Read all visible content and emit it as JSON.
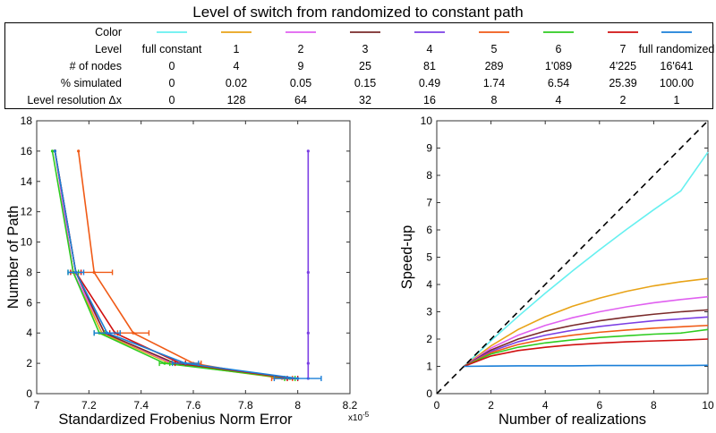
{
  "title": "Level of switch from randomized to constant path",
  "legend_table": {
    "row_labels": [
      "Color",
      "Level",
      "# of nodes",
      "% simulated",
      "Level resolution Δx"
    ],
    "columns": [
      {
        "color": "#66f0f0",
        "level": "full constant",
        "nodes": "0",
        "simulated": "0",
        "resolution": "0"
      },
      {
        "color": "#e8a317",
        "level": "1",
        "nodes": "4",
        "simulated": "0.02",
        "resolution": "128"
      },
      {
        "color": "#e060f0",
        "level": "2",
        "nodes": "9",
        "simulated": "0.05",
        "resolution": "64"
      },
      {
        "color": "#7a2a2a",
        "level": "3",
        "nodes": "25",
        "simulated": "0.15",
        "resolution": "32"
      },
      {
        "color": "#7b3fe4",
        "level": "4",
        "nodes": "81",
        "simulated": "0.49",
        "resolution": "16"
      },
      {
        "color": "#f05a16",
        "level": "5",
        "nodes": "289",
        "simulated": "1.74",
        "resolution": "8"
      },
      {
        "color": "#2ecc20",
        "level": "6",
        "nodes": "1'089",
        "simulated": "6.54",
        "resolution": "4"
      },
      {
        "color": "#d01010",
        "level": "7",
        "nodes": "4'225",
        "simulated": "25.39",
        "resolution": "2"
      },
      {
        "color": "#1a7fd8",
        "level": "full randomized",
        "nodes": "16'641",
        "simulated": "100.00",
        "resolution": "1"
      }
    ]
  },
  "chart_data": [
    {
      "type": "line",
      "xlabel": "Standardized Frobenius Norm Error",
      "x_exponent": "x10",
      "x_exponent_power": "-5",
      "ylabel": "Number of Path",
      "xlim": [
        7,
        8.2
      ],
      "ylim": [
        0,
        18
      ],
      "xticks": [
        "7",
        "7.2",
        "7.4",
        "7.6",
        "7.8",
        "8",
        "8.2"
      ],
      "yticks": [
        "0",
        "2",
        "4",
        "6",
        "8",
        "10",
        "12",
        "14",
        "16",
        "18"
      ],
      "y": [
        1,
        2,
        4,
        8,
        16
      ],
      "series": [
        {
          "color": "#e8a317",
          "x": [
            7.95,
            7.51,
            7.25,
            7.14,
            7.07
          ],
          "err": [
            0,
            0,
            0,
            0,
            0
          ]
        },
        {
          "color": "#e060f0",
          "x": [
            7.97,
            7.52,
            7.26,
            7.14,
            7.07
          ],
          "err": [
            0,
            0,
            0,
            0,
            0
          ]
        },
        {
          "color": "#7a2a2a",
          "x": [
            7.96,
            7.53,
            7.26,
            7.15,
            7.07
          ],
          "err": [
            0,
            0,
            0,
            0,
            0
          ]
        },
        {
          "color": "#7b3fe4",
          "x": [
            8.04,
            8.04,
            8.04,
            8.04,
            8.04
          ],
          "err": [
            0,
            0,
            0,
            0,
            0
          ]
        },
        {
          "color": "#f05a16",
          "x": [
            7.94,
            7.6,
            7.37,
            7.22,
            7.16
          ],
          "err": [
            0.04,
            0.03,
            0.06,
            0.07,
            0
          ]
        },
        {
          "color": "#2ecc20",
          "x": [
            7.97,
            7.49,
            7.24,
            7.14,
            7.06
          ],
          "err": [
            0.02,
            0.02,
            0.02,
            0.02,
            0
          ]
        },
        {
          "color": "#d01010",
          "x": [
            7.98,
            7.55,
            7.3,
            7.15,
            7.07
          ],
          "err": [
            0.02,
            0.02,
            0.02,
            0.02,
            0
          ]
        },
        {
          "color": "#1a7fd8",
          "x": [
            8.0,
            7.57,
            7.27,
            7.15,
            7.07
          ],
          "err": [
            0.09,
            0.05,
            0.05,
            0.03,
            0
          ]
        }
      ]
    },
    {
      "type": "line",
      "xlabel": "Number of realizations",
      "ylabel": "Speed-up",
      "xlim": [
        0,
        10
      ],
      "ylim": [
        0,
        10
      ],
      "xticks": [
        "0",
        "2",
        "4",
        "6",
        "8",
        "10"
      ],
      "yticks": [
        "0",
        "1",
        "2",
        "3",
        "4",
        "5",
        "6",
        "7",
        "8",
        "9",
        "10"
      ],
      "reference_line": {
        "style": "dashed",
        "color": "#000000",
        "x": [
          0,
          10
        ],
        "y": [
          0,
          10
        ]
      },
      "series": [
        {
          "color": "#66f0f0",
          "x": [
            1,
            2,
            3,
            4,
            5,
            6,
            7,
            8,
            9,
            10
          ],
          "y": [
            1,
            1.94,
            2.83,
            3.68,
            4.49,
            5.27,
            6.02,
            6.74,
            7.43,
            8.85
          ]
        },
        {
          "color": "#e8a317",
          "x": [
            1,
            2,
            3,
            4,
            5,
            6,
            7,
            8,
            9,
            10
          ],
          "y": [
            1,
            1.75,
            2.35,
            2.82,
            3.2,
            3.5,
            3.75,
            3.95,
            4.1,
            4.22
          ]
        },
        {
          "color": "#e060f0",
          "x": [
            1,
            2,
            3,
            4,
            5,
            6,
            7,
            8,
            9,
            10
          ],
          "y": [
            1,
            1.67,
            2.14,
            2.5,
            2.78,
            3.0,
            3.18,
            3.33,
            3.45,
            3.55
          ]
        },
        {
          "color": "#7a2a2a",
          "x": [
            1,
            2,
            3,
            4,
            5,
            6,
            7,
            8,
            9,
            10
          ],
          "y": [
            1,
            1.6,
            2.0,
            2.29,
            2.5,
            2.67,
            2.8,
            2.91,
            3.0,
            3.07
          ]
        },
        {
          "color": "#7b3fe4",
          "x": [
            1,
            2,
            3,
            4,
            5,
            6,
            7,
            8,
            9,
            10
          ],
          "y": [
            1,
            1.55,
            1.9,
            2.14,
            2.32,
            2.46,
            2.57,
            2.67,
            2.74,
            2.81
          ]
        },
        {
          "color": "#f05a16",
          "x": [
            1,
            2,
            3,
            4,
            5,
            6,
            7,
            8,
            9,
            10
          ],
          "y": [
            1,
            1.5,
            1.8,
            2.0,
            2.14,
            2.25,
            2.33,
            2.4,
            2.45,
            2.5
          ]
        },
        {
          "color": "#2ecc20",
          "x": [
            1,
            2,
            3,
            4,
            5,
            6,
            7,
            8,
            9,
            10
          ],
          "y": [
            1,
            1.45,
            1.7,
            1.86,
            1.97,
            2.06,
            2.12,
            2.18,
            2.22,
            2.35
          ]
        },
        {
          "color": "#d01010",
          "x": [
            1,
            2,
            3,
            4,
            5,
            6,
            7,
            8,
            9,
            10
          ],
          "y": [
            1,
            1.38,
            1.58,
            1.7,
            1.79,
            1.85,
            1.9,
            1.93,
            1.96,
            2.0
          ]
        },
        {
          "color": "#1a7fd8",
          "x": [
            1,
            2,
            3,
            4,
            5,
            6,
            7,
            8,
            9,
            10
          ],
          "y": [
            1,
            1.01,
            1.02,
            1.02,
            1.02,
            1.03,
            1.03,
            1.03,
            1.03,
            1.04
          ]
        }
      ]
    }
  ]
}
